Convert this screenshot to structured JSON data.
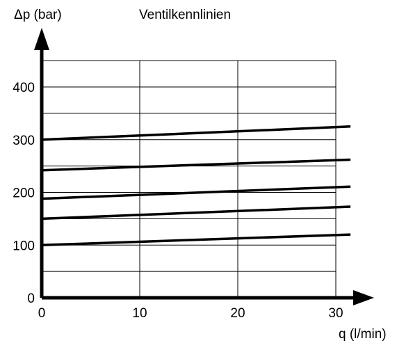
{
  "chart_data": {
    "type": "line",
    "title": "Ventilkennlinien",
    "ylabel": "Δp (bar)",
    "xlabel": "q (l/min)",
    "xlim": [
      0,
      30
    ],
    "ylim": [
      0,
      450
    ],
    "x_ticks": [
      "0",
      "10",
      "20",
      "30"
    ],
    "y_ticks": [
      "0",
      "100",
      "200",
      "300",
      "400"
    ],
    "grid": true,
    "series": [
      {
        "x": [
          0,
          31.5
        ],
        "y": [
          100,
          120
        ]
      },
      {
        "x": [
          0,
          31.5
        ],
        "y": [
          150,
          173
        ]
      },
      {
        "x": [
          0,
          31.5
        ],
        "y": [
          188,
          211
        ]
      },
      {
        "x": [
          0,
          31.5
        ],
        "y": [
          242,
          262
        ]
      },
      {
        "x": [
          0,
          31.5
        ],
        "y": [
          300,
          325
        ]
      }
    ]
  }
}
